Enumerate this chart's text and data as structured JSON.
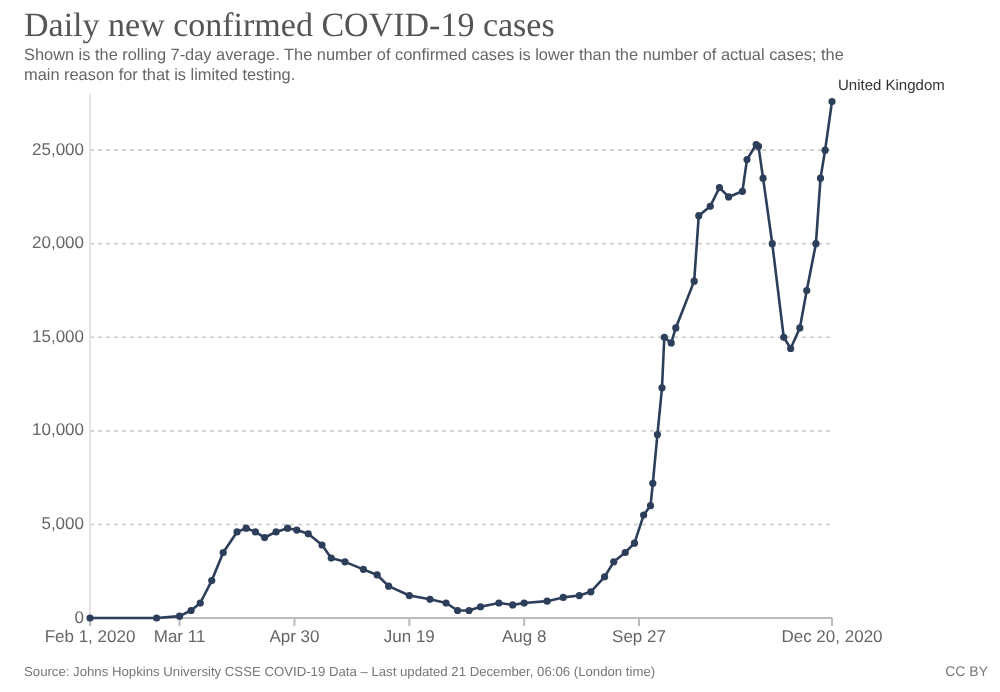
{
  "chart_data": {
    "type": "line",
    "title": "Daily new confirmed COVID-19 cases",
    "subtitle": "Shown is the rolling 7-day average. The number of confirmed cases is lower than the number of actual cases; the main reason for that is limited testing.",
    "annotations": [
      "Source: Johns Hopkins University CSSE COVID-19 Data – Last updated 21 December, 06:06 (London time)",
      "CC BY"
    ],
    "xlim": [
      "2020-02-01",
      "2020-12-20"
    ],
    "xticks": [
      {
        "value": "2020-02-01",
        "label": "Feb 1, 2020"
      },
      {
        "value": "2020-03-11",
        "label": "Mar 11"
      },
      {
        "value": "2020-04-30",
        "label": "Apr 30"
      },
      {
        "value": "2020-06-19",
        "label": "Jun 19"
      },
      {
        "value": "2020-08-08",
        "label": "Aug 8"
      },
      {
        "value": "2020-09-27",
        "label": "Sep 27"
      },
      {
        "value": "2020-12-20",
        "label": "Dec 20, 2020"
      }
    ],
    "ylim": [
      0,
      28000
    ],
    "yticks": [
      {
        "value": 0,
        "label": "0"
      },
      {
        "value": 5000,
        "label": "5,000"
      },
      {
        "value": 10000,
        "label": "10,000"
      },
      {
        "value": 15000,
        "label": "15,000"
      },
      {
        "value": 20000,
        "label": "20,000"
      },
      {
        "value": 25000,
        "label": "25,000"
      }
    ],
    "grid": "y",
    "marker": "circle",
    "line_style": "solid",
    "legend": false,
    "x": [
      "2020-02-01",
      "2020-03-01",
      "2020-03-11",
      "2020-03-16",
      "2020-03-20",
      "2020-03-25",
      "2020-03-30",
      "2020-04-05",
      "2020-04-09",
      "2020-04-13",
      "2020-04-17",
      "2020-04-22",
      "2020-04-27",
      "2020-05-01",
      "2020-05-06",
      "2020-05-12",
      "2020-05-16",
      "2020-05-22",
      "2020-05-30",
      "2020-06-05",
      "2020-06-10",
      "2020-06-19",
      "2020-06-28",
      "2020-07-05",
      "2020-07-10",
      "2020-07-15",
      "2020-07-20",
      "2020-07-28",
      "2020-08-03",
      "2020-08-08",
      "2020-08-18",
      "2020-08-25",
      "2020-09-01",
      "2020-09-06",
      "2020-09-12",
      "2020-09-16",
      "2020-09-21",
      "2020-09-25",
      "2020-09-29",
      "2020-10-02",
      "2020-10-03",
      "2020-10-05",
      "2020-10-07",
      "2020-10-08",
      "2020-10-11",
      "2020-10-13",
      "2020-10-21",
      "2020-10-23",
      "2020-10-28",
      "2020-11-01",
      "2020-11-05",
      "2020-11-11",
      "2020-11-13",
      "2020-11-17",
      "2020-11-18",
      "2020-11-20",
      "2020-11-24",
      "2020-11-29",
      "2020-12-02",
      "2020-12-06",
      "2020-12-09",
      "2020-12-13",
      "2020-12-15",
      "2020-12-17",
      "2020-12-20"
    ],
    "series": [
      {
        "name": "United Kingdom",
        "color": "#2d3e5a",
        "values": [
          0,
          0,
          100,
          400,
          800,
          2000,
          3500,
          4600,
          4800,
          4600,
          4300,
          4600,
          4800,
          4700,
          4500,
          3900,
          3200,
          3000,
          2600,
          2300,
          1700,
          1200,
          1000,
          800,
          400,
          400,
          600,
          800,
          700,
          800,
          900,
          1100,
          1200,
          1400,
          2200,
          3000,
          3500,
          4000,
          5500,
          6000,
          7200,
          9800,
          12300,
          15000,
          14700,
          15500,
          18000,
          21500,
          22000,
          23000,
          22500,
          22800,
          24500,
          25300,
          25200,
          23500,
          20000,
          15000,
          14400,
          15500,
          17500,
          20000,
          23500,
          25000,
          27600
        ]
      }
    ]
  }
}
